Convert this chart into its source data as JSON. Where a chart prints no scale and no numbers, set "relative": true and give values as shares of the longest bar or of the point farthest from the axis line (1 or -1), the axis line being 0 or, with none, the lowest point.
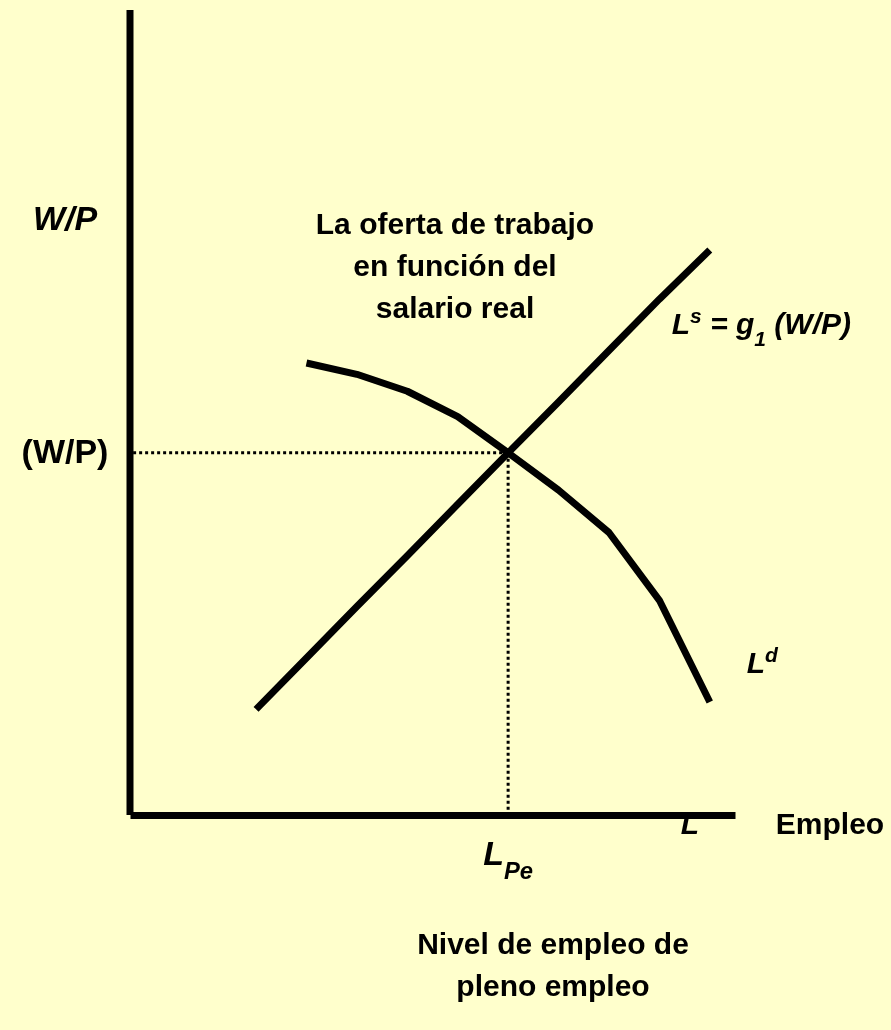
{
  "chart_data": {
    "type": "line",
    "relative": true,
    "xlabel": "Empleo",
    "ylabel": "W/P",
    "categories": [
      null,
      null,
      null,
      null,
      null,
      null,
      null,
      null,
      null,
      null,
      null,
      null
    ],
    "series": [
      {
        "name": "L$^{s}$ = g$_{1}$ (W/P)",
        "color": "#000000",
        "values": [
          null,
          null,
          0.187,
          0.278,
          0.369,
          0.459,
          0.55,
          0.641,
          0.731,
          0.822,
          0.913,
          1
        ]
      },
      {
        "name": "L$^{d}$",
        "color": "#000000",
        "values": [
          null,
          null,
          null,
          0.8,
          0.78,
          0.75,
          0.705,
          0.641,
          0.575,
          0.5,
          0.38,
          0.2
        ]
      }
    ],
    "ref_lines": [
      {
        "axis": "y",
        "value": 0.641,
        "label": "(W/P)",
        "line_style": "dotted"
      }
    ],
    "annotations": [
      "La oferta de trabajo\nen función del\nsalario real",
      "Nivel de empleo de\npleno empleo",
      "L",
      "L$_{Pe}$"
    ]
  }
}
